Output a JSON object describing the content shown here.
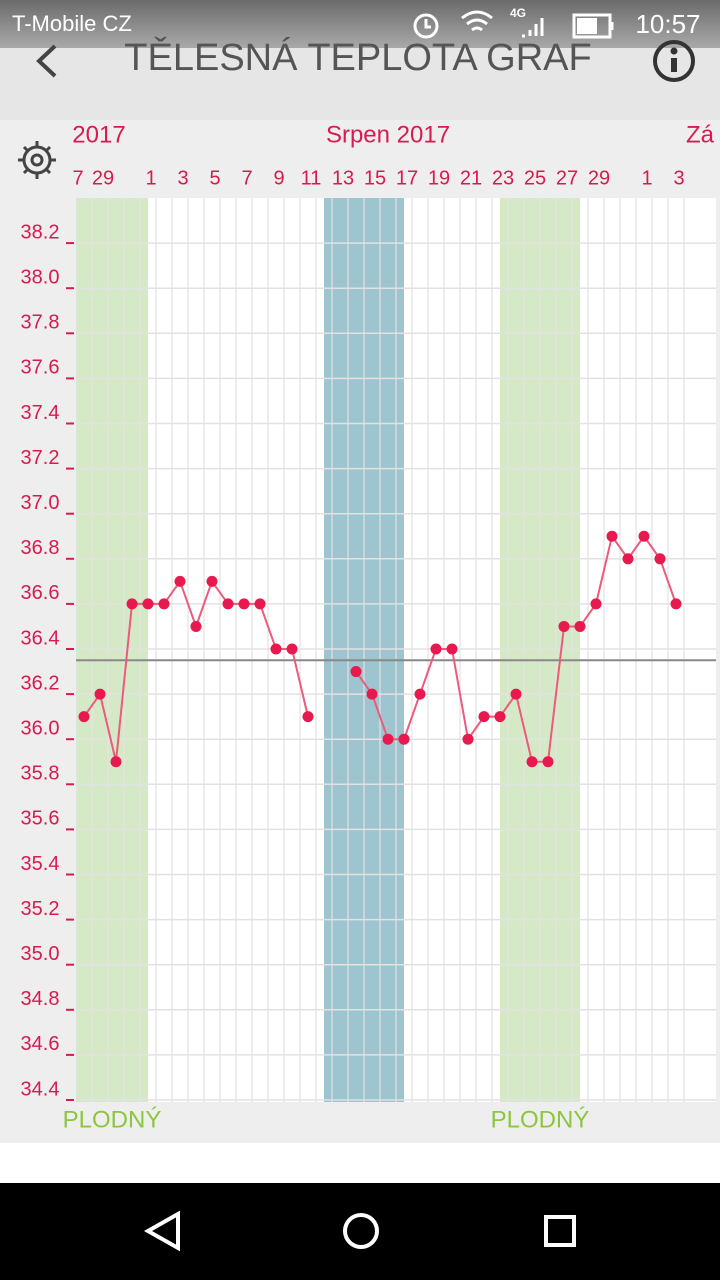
{
  "status_bar": {
    "carrier": "T-Mobile CZ",
    "network": "4G",
    "time": "10:57"
  },
  "header": {
    "title": "TĚLESNÁ TEPLOTA GRAF"
  },
  "chart_data": {
    "type": "line",
    "months": [
      {
        "label": "2017",
        "index": 2
      },
      {
        "label": "Srpen 2017",
        "index": 20
      },
      {
        "label": "Zá",
        "index": 39
      }
    ],
    "categories": [
      "7",
      null,
      "29",
      null,
      null,
      "1",
      null,
      "3",
      null,
      "5",
      null,
      "7",
      null,
      "9",
      null,
      "11",
      null,
      "13",
      null,
      "15",
      null,
      "17",
      null,
      "19",
      null,
      "21",
      null,
      "23",
      null,
      "25",
      null,
      "27",
      null,
      "29",
      null,
      null,
      "1",
      null,
      "3"
    ],
    "series": [
      {
        "name": "Teplota",
        "color": "#e8194f",
        "values": [
          null,
          36.1,
          36.2,
          35.9,
          36.6,
          36.6,
          36.6,
          36.7,
          36.5,
          36.7,
          36.6,
          36.6,
          36.6,
          36.4,
          36.4,
          36.1,
          null,
          null,
          36.3,
          36.2,
          36.0,
          36.0,
          36.2,
          36.4,
          36.4,
          36.0,
          36.1,
          36.1,
          36.2,
          35.9,
          35.9,
          36.5,
          36.5,
          36.6,
          36.9,
          36.8,
          36.9,
          36.8,
          36.6
        ]
      }
    ],
    "cover_line": 36.35,
    "bands": [
      {
        "label": "PLODNÝ",
        "start": 0,
        "end": 5,
        "color": "#d6e9c6"
      },
      {
        "start": 16,
        "end": 21,
        "color": "#9dc4cf"
      },
      {
        "label": "PLODNÝ",
        "start": 27,
        "end": 32,
        "color": "#d6e9c6"
      }
    ],
    "ylim": [
      34.4,
      38.4
    ],
    "yticks": [
      34.4,
      34.6,
      34.8,
      {
        "value": 35,
        "label": "35.0"
      },
      35.2,
      35.4,
      35.6,
      35.8,
      {
        "value": 36,
        "label": "36.0"
      },
      36.2,
      36.4,
      36.6,
      36.8,
      {
        "value": 37,
        "label": "37.0"
      },
      37.2,
      37.4,
      37.6,
      37.8,
      {
        "value": 38,
        "label": "38.0"
      },
      38.2
    ],
    "grid": true
  }
}
